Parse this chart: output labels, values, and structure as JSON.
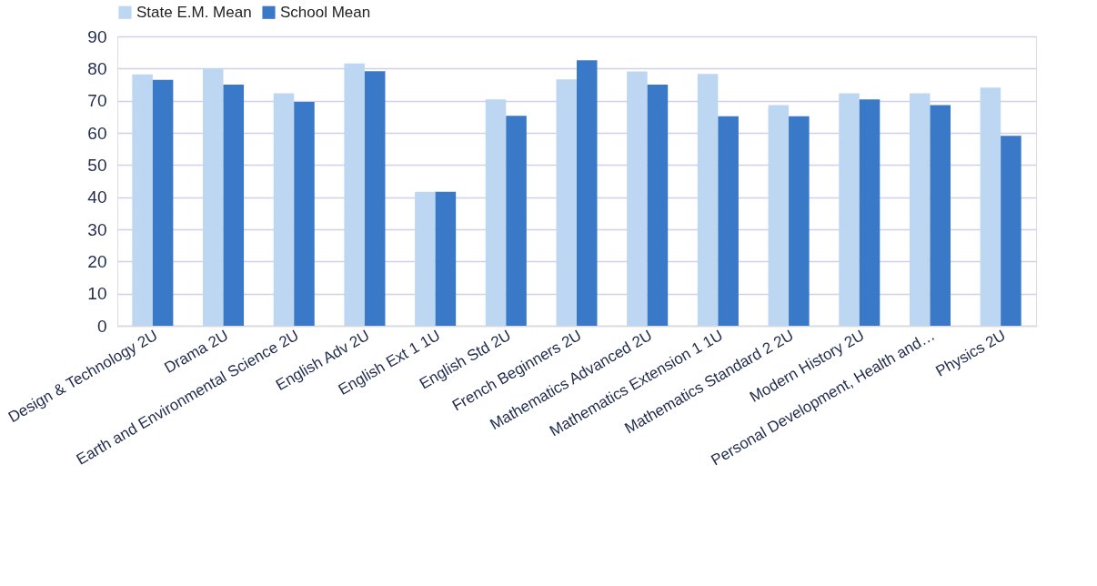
{
  "chart_data": {
    "type": "bar",
    "categories": [
      "Design & Technology 2U",
      "Drama 2U",
      "Earth and Environmental Science 2U",
      "English Adv 2U",
      "English Ext 1 1U",
      "English Std 2U",
      "French Beginners 2U",
      "Mathematics Advanced 2U",
      "Mathematics Extension 1 1U",
      "Mathematics Standard 2 2U",
      "Modern History 2U",
      "Personal Development, Health and…",
      "Physics 2U"
    ],
    "series": [
      {
        "name": "State E.M. Mean",
        "color": "#bdd7f2",
        "values": [
          78.2,
          80.0,
          72.3,
          81.6,
          41.7,
          70.4,
          76.6,
          79.1,
          78.3,
          68.6,
          72.3,
          72.3,
          74.1
        ]
      },
      {
        "name": "School Mean",
        "color": "#3a78c8",
        "values": [
          76.5,
          75.0,
          69.6,
          79.2,
          41.7,
          65.3,
          82.6,
          75.0,
          65.2,
          65.2,
          70.4,
          68.6,
          59.1
        ]
      }
    ],
    "ylim": [
      0,
      90
    ],
    "yticks": [
      0,
      10,
      20,
      30,
      40,
      50,
      60,
      70,
      80,
      90
    ],
    "grid": "y",
    "legend": "top"
  }
}
